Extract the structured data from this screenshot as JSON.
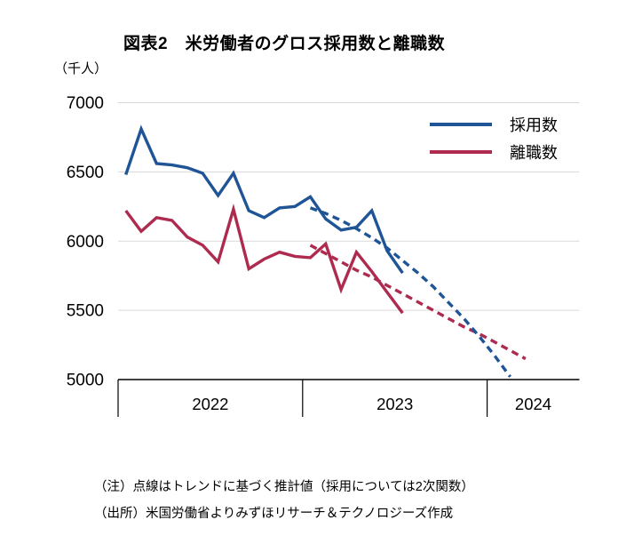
{
  "chart_data": {
    "type": "line",
    "title": "図表2　米労働者のグロス採用数と離職数",
    "unit_label": "（千人）",
    "y_axis": {
      "min": 5000,
      "max": 7000,
      "ticks": [
        7000,
        6500,
        6000,
        5500,
        5000
      ],
      "grid": true,
      "grid_color": "#d9d9d9"
    },
    "x_axis": {
      "year_labels": [
        "2022",
        "2023",
        "2024"
      ],
      "months_per_year": 12,
      "total_months_span": 30,
      "axis_color": "#000000"
    },
    "series": [
      {
        "key": "hires-line",
        "name": "採用数",
        "color": "#1f5596",
        "style": "solid",
        "start_month_index": 1,
        "values": [
          6480,
          6810,
          6560,
          6550,
          6530,
          6490,
          6330,
          6490,
          6220,
          6170,
          6240,
          6250,
          6320,
          6160,
          6080,
          6100,
          6220,
          5930,
          5770
        ]
      },
      {
        "key": "separations-line",
        "name": "離職数",
        "color": "#ae2b4f",
        "style": "solid",
        "start_month_index": 1,
        "values": [
          6220,
          6070,
          6170,
          6150,
          6030,
          5970,
          5850,
          6230,
          5800,
          5870,
          5920,
          5890,
          5880,
          5980,
          5650,
          5920,
          5780,
          5630,
          5480
        ]
      },
      {
        "key": "hires-trend-line",
        "name": "採用数（点線・トレンド推計値）",
        "color": "#1f5596",
        "style": "dashed",
        "in_legend": false,
        "start_month_index": 13,
        "values": [
          6240,
          6200,
          6150,
          6090,
          6025,
          5950,
          5860,
          5770,
          5670,
          5555,
          5440,
          5310,
          5170,
          5020
        ]
      },
      {
        "key": "separations-trend-line",
        "name": "離職数（点線・トレンド推計値）",
        "color": "#ae2b4f",
        "style": "dashed",
        "in_legend": false,
        "start_month_index": 13,
        "values": [
          5970,
          5910,
          5850,
          5790,
          5740,
          5680,
          5620,
          5560,
          5500,
          5440,
          5380,
          5330,
          5270,
          5210,
          5150
        ]
      }
    ],
    "legend_position": "top-right",
    "notes": [
      "（注）点線はトレンドに基づく推計値（採用については2次関数）",
      "（出所）米国労働省よりみずほリサーチ＆テクノロジーズ作成"
    ]
  }
}
